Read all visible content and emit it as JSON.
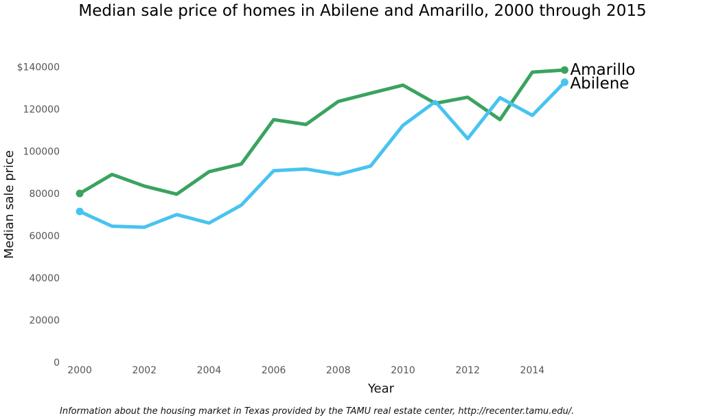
{
  "chart_data": {
    "type": "line",
    "title": "Median sale price of homes in Abilene and Amarillo, 2000 through 2015",
    "xlabel": "Year",
    "ylabel": "Median sale price",
    "x": [
      2000,
      2001,
      2002,
      2003,
      2004,
      2005,
      2006,
      2007,
      2008,
      2009,
      2010,
      2011,
      2012,
      2013,
      2014,
      2015
    ],
    "xlim": [
      1999.7,
      2015.5
    ],
    "ylim": [
      0,
      145000
    ],
    "x_ticks": [
      2000,
      2002,
      2004,
      2006,
      2008,
      2010,
      2012,
      2014
    ],
    "y_ticks": [
      0,
      20000,
      40000,
      60000,
      80000,
      100000,
      120000,
      140000
    ],
    "y_tick_labels": [
      "0",
      "20000",
      "40000",
      "60000",
      "80000",
      "100000",
      "120000",
      "$140000"
    ],
    "grid": false,
    "series": [
      {
        "name": "Amarillo",
        "color": "#3aa35f",
        "values": [
          80000,
          89000,
          83500,
          79700,
          90300,
          94000,
          115000,
          112700,
          123600,
          127500,
          131300,
          122700,
          125600,
          115000,
          137500,
          138500
        ]
      },
      {
        "name": "Abilene",
        "color": "#48c3f0",
        "values": [
          71500,
          64500,
          64000,
          70000,
          66000,
          74500,
          90800,
          91600,
          89000,
          93000,
          112300,
          123500,
          106000,
          125400,
          117000,
          132700
        ]
      }
    ],
    "caption": "Information about the housing market in Texas provided by the TAMU real estate center, http://recenter.tamu.edu/."
  }
}
